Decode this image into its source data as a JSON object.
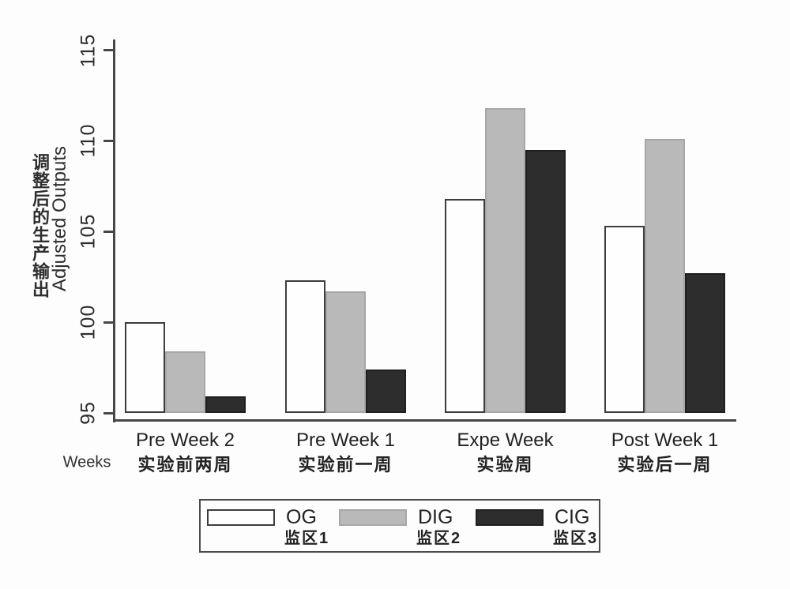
{
  "chart_data": {
    "type": "bar",
    "xlabel": "Weeks",
    "ylabel_zh": "调整后的生产输出",
    "ylabel_en": "Adjusted Outputs",
    "ylim": [
      95,
      115
    ],
    "yticks": [
      95,
      100,
      105,
      110,
      115
    ],
    "grid": false,
    "legend_position": "bottom",
    "axis_color": "#474747",
    "categories_en": [
      "Pre Week 2",
      "Pre Week 1",
      "Expe Week",
      "Post Week 1"
    ],
    "categories_zh": [
      "实验前两周",
      "实验前一周",
      "实验周",
      "实验后一周"
    ],
    "series": [
      {
        "name": "OG",
        "name_zh": "监区1",
        "fill": "#fefefe",
        "border": "#3d3d3d",
        "values": [
          100.0,
          102.3,
          106.8,
          105.3
        ]
      },
      {
        "name": "DIG",
        "name_zh": "监区2",
        "fill": "#b9b9b9",
        "border": "#a6a6a6",
        "values": [
          98.4,
          101.7,
          111.8,
          110.1
        ]
      },
      {
        "name": "CIG",
        "name_zh": "监区3",
        "fill": "#2d2d2d",
        "border": "#1f1f1f",
        "values": [
          95.9,
          97.4,
          109.5,
          102.7
        ]
      }
    ]
  }
}
